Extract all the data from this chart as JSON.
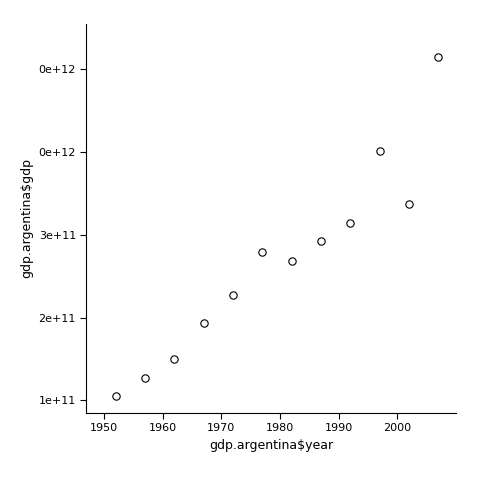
{
  "years": [
    1952,
    1957,
    1962,
    1967,
    1972,
    1977,
    1982,
    1987,
    1992,
    1997,
    2002,
    2007
  ],
  "gdp": [
    105000000000.0,
    127000000000.0,
    150000000000.0,
    193000000000.0,
    228000000000.0,
    279000000000.0,
    268000000000.0,
    293000000000.0,
    314000000000.0,
    402000000000.0,
    337000000000.0,
    515000000000.0
  ],
  "xlabel": "gdp.argentina$year",
  "ylabel": "gdp.argentina$gdp",
  "xlim": [
    1947,
    2010
  ],
  "ylim": [
    85000000000.0,
    555000000000.0
  ],
  "xticks": [
    1950,
    1960,
    1970,
    1980,
    1990,
    2000
  ],
  "yticks": [
    100000000000.0,
    200000000000.0,
    300000000000.0,
    400000000000.0,
    500000000000.0
  ],
  "bg_color": "#ffffff",
  "marker_facecolor": "white",
  "marker_edgecolor": "black",
  "marker_size": 28,
  "marker_linewidth": 0.8,
  "tick_fontsize": 8,
  "label_fontsize": 9,
  "spine_linewidth": 0.8
}
